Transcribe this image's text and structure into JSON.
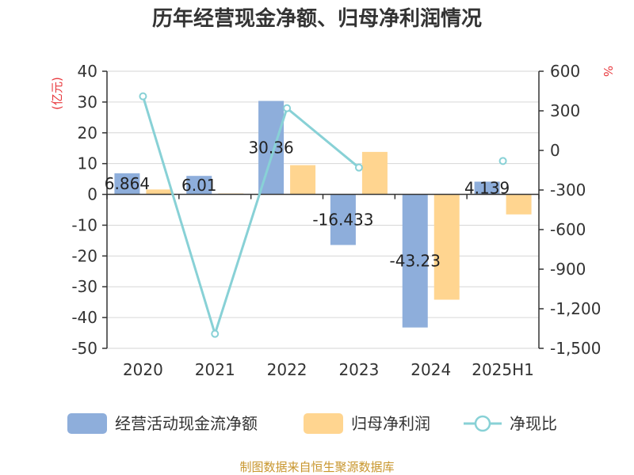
{
  "chart_data": {
    "type": "bar",
    "title": "历年经营现金净额、归母净利润情况",
    "categories": [
      "2020",
      "2021",
      "2022",
      "2023",
      "2024",
      "2025H1"
    ],
    "left_axis": {
      "unit": "(亿元)",
      "range": [
        -50,
        40
      ],
      "ticks": [
        "40",
        "30",
        "20",
        "10",
        "0",
        "-10",
        "-20",
        "-30",
        "-40",
        "-50"
      ]
    },
    "right_axis": {
      "unit": "%",
      "range": [
        -1500,
        600
      ],
      "ticks": [
        "600",
        "300",
        "0",
        "-300",
        "-600",
        "-900",
        "-1,200",
        "-1,500"
      ]
    },
    "series": [
      {
        "name": "经营活动现金流净额",
        "kind": "bar",
        "axis": "left",
        "color": "#8eaedb",
        "values": [
          6.864,
          6.01,
          30.36,
          -16.433,
          -43.23,
          4.139
        ],
        "labels": [
          "6.864",
          "6.01",
          "30.36",
          "-16.433",
          "-43.23",
          "4.139"
        ]
      },
      {
        "name": "归母净利润",
        "kind": "bar",
        "axis": "left",
        "color": "#ffd590",
        "values": [
          1.6,
          0.3,
          9.5,
          13.8,
          -34.2,
          -6.5
        ]
      },
      {
        "name": "净现比",
        "kind": "line",
        "axis": "right",
        "color": "#88d1d6",
        "values": [
          410,
          -1390,
          320,
          -130,
          null,
          -80
        ]
      }
    ],
    "legend_position": "bottom",
    "source": "制图数据来自恒生聚源数据库"
  }
}
